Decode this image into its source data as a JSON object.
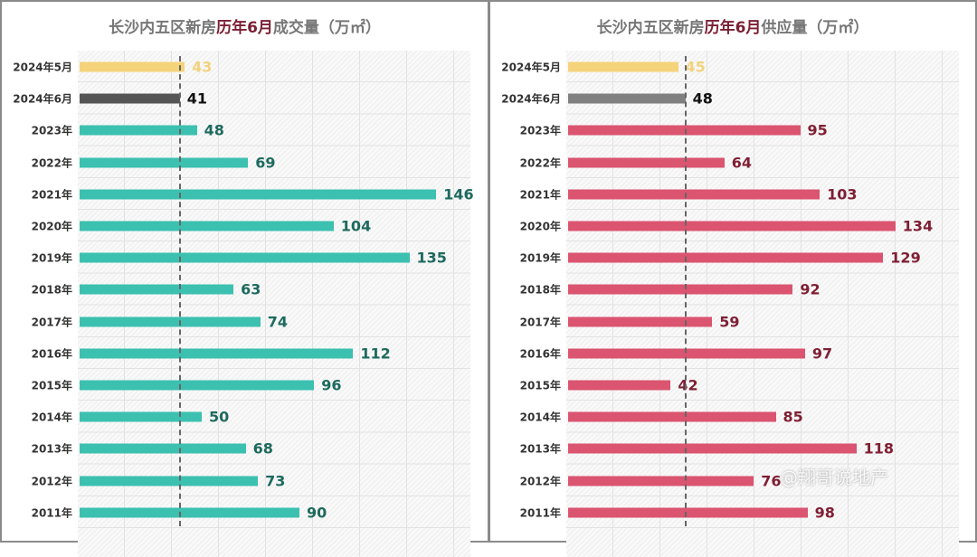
{
  "chart_data": [
    {
      "type": "bar",
      "orientation": "horizontal",
      "title_parts": [
        "长沙内五区新房",
        "历年6月",
        "成交量（万㎡）"
      ],
      "categories": [
        "2024年5月",
        "2024年6月",
        "2023年",
        "2022年",
        "2021年",
        "2020年",
        "2019年",
        "2018年",
        "2017年",
        "2016年",
        "2015年",
        "2014年",
        "2013年",
        "2012年",
        "2011年"
      ],
      "values": [
        43,
        41,
        48,
        69,
        146,
        104,
        135,
        63,
        74,
        112,
        96,
        50,
        68,
        73,
        90
      ],
      "reference_line": 41,
      "colors": {
        "2024年5月": "#f5d37a",
        "2024年6月": "#555555",
        "default": "#3cc0b0",
        "label_default": "#1e6a5e",
        "label_2024年5月": "#f2d27e",
        "label_2024年6月": "#111111"
      },
      "grid": true
    },
    {
      "type": "bar",
      "orientation": "horizontal",
      "title_parts": [
        "长沙内五区新房",
        "历年6月",
        "供应量（万㎡）"
      ],
      "categories": [
        "2024年5月",
        "2024年6月",
        "2023年",
        "2022年",
        "2021年",
        "2020年",
        "2019年",
        "2018年",
        "2017年",
        "2016年",
        "2015年",
        "2014年",
        "2013年",
        "2012年",
        "2011年"
      ],
      "values": [
        45,
        48,
        95,
        64,
        103,
        134,
        129,
        92,
        59,
        97,
        42,
        85,
        118,
        76,
        98
      ],
      "reference_line": 48,
      "colors": {
        "2024年5月": "#f5d37a",
        "2024年6月": "#808080",
        "default": "#db5470",
        "label_default": "#7f1f33",
        "label_2024年5月": "#f2d27e",
        "label_2024年6月": "#111111"
      },
      "grid": true
    }
  ],
  "watermark": "@翔哥说地产"
}
